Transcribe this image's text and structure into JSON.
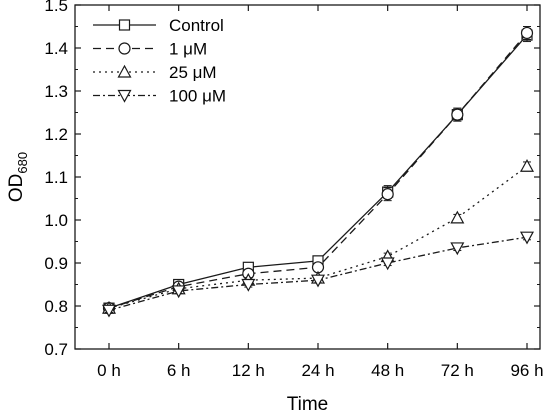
{
  "chart_data": {
    "type": "line",
    "xlabel": "Time",
    "ylabel": "OD",
    "ylabel_subscript": "680",
    "categories": [
      "0 h",
      "6 h",
      "12 h",
      "24 h",
      "48 h",
      "72 h",
      "96 h"
    ],
    "ylim": [
      0.7,
      1.5
    ],
    "yticks": [
      "0.7",
      "0.8",
      "0.9",
      "1.0",
      "1.1",
      "1.2",
      "1.3",
      "1.4",
      "1.5"
    ],
    "grid": false,
    "legend_position": "top-left",
    "series": [
      {
        "name": "Control",
        "line_style": "solid",
        "marker": "square",
        "values": [
          0.795,
          0.85,
          0.89,
          0.905,
          1.065,
          1.245,
          1.43
        ],
        "errors": [
          0.005,
          0.008,
          0.01,
          0.01,
          0.015,
          0.015,
          0.015
        ]
      },
      {
        "name": "1 μM",
        "line_style": "dashed",
        "marker": "circle",
        "values": [
          0.795,
          0.845,
          0.875,
          0.89,
          1.06,
          1.245,
          1.435
        ],
        "errors": [
          0.005,
          0.008,
          0.01,
          0.01,
          0.015,
          0.015,
          0.015
        ]
      },
      {
        "name": "25 μM",
        "line_style": "dotted",
        "marker": "triangle-up",
        "values": [
          0.795,
          0.84,
          0.86,
          0.865,
          0.915,
          1.005,
          1.125
        ],
        "errors": [
          0.005,
          0.006,
          0.006,
          0.006,
          0.008,
          0.008,
          0.01
        ]
      },
      {
        "name": "100 μM",
        "line_style": "dash-dot",
        "marker": "triangle-down",
        "values": [
          0.79,
          0.835,
          0.85,
          0.86,
          0.9,
          0.935,
          0.96
        ],
        "errors": [
          0.005,
          0.006,
          0.006,
          0.006,
          0.006,
          0.006,
          0.006
        ]
      }
    ],
    "colors": {
      "line": "#1a1a1a",
      "marker_fill": "#ffffff",
      "background": "#ffffff"
    }
  }
}
